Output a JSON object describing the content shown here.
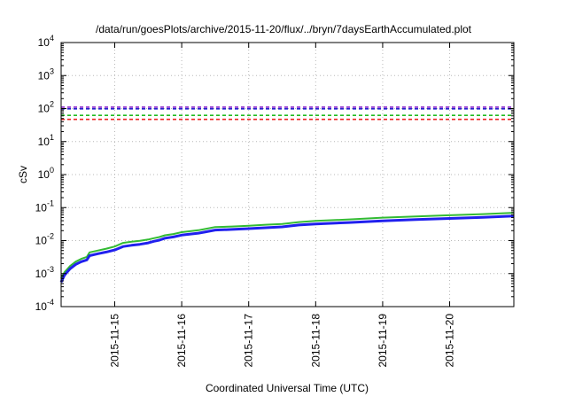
{
  "chart_data": {
    "type": "line",
    "title": "/data/run/goesPlots/archive/2015-11-20/flux/../bryn/7daysEarthAccumulated.plot",
    "xlabel": "Coordinated Universal Time (UTC)",
    "ylabel": "cSv",
    "y_scale": "log",
    "ylim": [
      0.0001,
      10000
    ],
    "xlim": [
      "2015-11-14 04:48",
      "2015-11-20 23:00"
    ],
    "grid": true,
    "y_ticks": [
      {
        "base": "10",
        "exp": "-4",
        "value": 0.0001
      },
      {
        "base": "10",
        "exp": "-3",
        "value": 0.001
      },
      {
        "base": "10",
        "exp": "-2",
        "value": 0.01
      },
      {
        "base": "10",
        "exp": "-1",
        "value": 0.1
      },
      {
        "base": "10",
        "exp": "0",
        "value": 1
      },
      {
        "base": "10",
        "exp": "1",
        "value": 10
      },
      {
        "base": "10",
        "exp": "2",
        "value": 100
      },
      {
        "base": "10",
        "exp": "3",
        "value": 1000
      },
      {
        "base": "10",
        "exp": "4",
        "value": 10000
      }
    ],
    "x_ticks": [
      {
        "label": "2015-11-15",
        "date": "2015-11-15"
      },
      {
        "label": "2015-11-16",
        "date": "2015-11-16"
      },
      {
        "label": "2015-11-17",
        "date": "2015-11-17"
      },
      {
        "label": "2015-11-18",
        "date": "2015-11-18"
      },
      {
        "label": "2015-11-19",
        "date": "2015-11-19"
      },
      {
        "label": "2015-11-20",
        "date": "2015-11-20"
      }
    ],
    "series": [
      {
        "color": "#33bb33",
        "width": 2,
        "dash": false,
        "points": [
          [
            "2015-11-14 04:48",
            0.0007
          ],
          [
            "2015-11-14 06:00",
            0.0011
          ],
          [
            "2015-11-14 08:00",
            0.0017
          ],
          [
            "2015-11-14 10:00",
            0.0023
          ],
          [
            "2015-11-14 12:00",
            0.0028
          ],
          [
            "2015-11-14 14:00",
            0.0032
          ],
          [
            "2015-11-14 15:00",
            0.0044
          ],
          [
            "2015-11-14 18:00",
            0.005
          ],
          [
            "2015-11-14 21:00",
            0.0057
          ],
          [
            "2015-11-15 00:00",
            0.0066
          ],
          [
            "2015-11-15 03:00",
            0.0085
          ],
          [
            "2015-11-15 06:00",
            0.0092
          ],
          [
            "2015-11-15 09:00",
            0.0098
          ],
          [
            "2015-11-15 12:00",
            0.0108
          ],
          [
            "2015-11-15 14:00",
            0.0118
          ],
          [
            "2015-11-15 16:00",
            0.0128
          ],
          [
            "2015-11-15 18:00",
            0.0145
          ],
          [
            "2015-11-15 21:00",
            0.0158
          ],
          [
            "2015-11-16 00:00",
            0.018
          ],
          [
            "2015-11-16 06:00",
            0.0206
          ],
          [
            "2015-11-16 08:00",
            0.0222
          ],
          [
            "2015-11-16 12:00",
            0.0258
          ],
          [
            "2015-11-16 18:00",
            0.0268
          ],
          [
            "2015-11-17 00:00",
            0.0283
          ],
          [
            "2015-11-17 06:00",
            0.0302
          ],
          [
            "2015-11-17 12:00",
            0.032
          ],
          [
            "2015-11-17 18:00",
            0.0365
          ],
          [
            "2015-11-18 00:00",
            0.0395
          ],
          [
            "2015-11-18 12:00",
            0.0438
          ],
          [
            "2015-11-19 00:00",
            0.0495
          ],
          [
            "2015-11-19 12:00",
            0.054
          ],
          [
            "2015-11-20 00:00",
            0.0585
          ],
          [
            "2015-11-20 12:00",
            0.0635
          ],
          [
            "2015-11-20 23:00",
            0.0695
          ]
        ]
      },
      {
        "color": "#2020ee",
        "width": 3,
        "dash": false,
        "points": [
          [
            "2015-11-14 04:48",
            0.00055
          ],
          [
            "2015-11-14 06:00",
            0.0009
          ],
          [
            "2015-11-14 08:00",
            0.0014
          ],
          [
            "2015-11-14 10:00",
            0.0019
          ],
          [
            "2015-11-14 12:00",
            0.0023
          ],
          [
            "2015-11-14 14:00",
            0.0026
          ],
          [
            "2015-11-14 15:00",
            0.0035
          ],
          [
            "2015-11-14 18:00",
            0.004
          ],
          [
            "2015-11-14 21:00",
            0.0045
          ],
          [
            "2015-11-15 00:00",
            0.0052
          ],
          [
            "2015-11-15 03:00",
            0.0066
          ],
          [
            "2015-11-15 06:00",
            0.0072
          ],
          [
            "2015-11-15 09:00",
            0.0077
          ],
          [
            "2015-11-15 12:00",
            0.0085
          ],
          [
            "2015-11-15 14:00",
            0.0095
          ],
          [
            "2015-11-15 16:00",
            0.0103
          ],
          [
            "2015-11-15 18:00",
            0.0118
          ],
          [
            "2015-11-15 21:00",
            0.0129
          ],
          [
            "2015-11-16 00:00",
            0.0147
          ],
          [
            "2015-11-16 06:00",
            0.0168
          ],
          [
            "2015-11-16 08:00",
            0.018
          ],
          [
            "2015-11-16 12:00",
            0.0209
          ],
          [
            "2015-11-16 18:00",
            0.0218
          ],
          [
            "2015-11-17 00:00",
            0.023
          ],
          [
            "2015-11-17 06:00",
            0.0245
          ],
          [
            "2015-11-17 12:00",
            0.026
          ],
          [
            "2015-11-17 18:00",
            0.0296
          ],
          [
            "2015-11-18 00:00",
            0.032
          ],
          [
            "2015-11-18 12:00",
            0.0353
          ],
          [
            "2015-11-19 00:00",
            0.0398
          ],
          [
            "2015-11-19 12:00",
            0.0432
          ],
          [
            "2015-11-20 00:00",
            0.0468
          ],
          [
            "2015-11-20 12:00",
            0.0508
          ],
          [
            "2015-11-20 23:00",
            0.0555
          ]
        ]
      }
    ],
    "thresholds": [
      {
        "value": 110,
        "color": "#8822cc",
        "dashed": true
      },
      {
        "value": 98,
        "color": "#2222cc",
        "dashed": true
      },
      {
        "value": 62,
        "color": "#22bb22",
        "dashed": true
      },
      {
        "value": 47,
        "color": "#ee2222",
        "dashed": true
      }
    ]
  }
}
